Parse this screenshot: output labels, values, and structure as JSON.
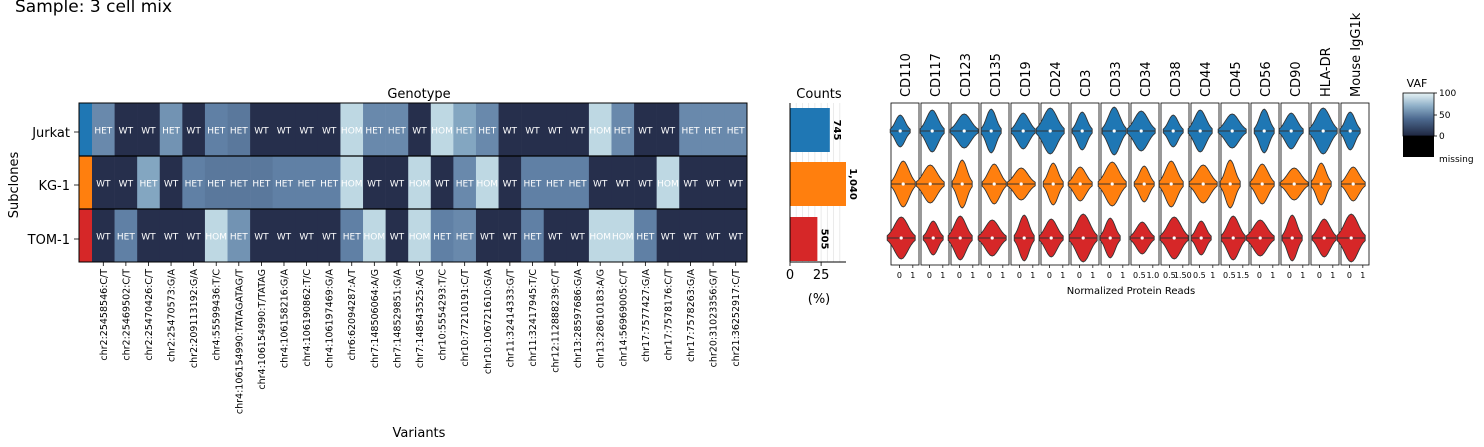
{
  "page_title": "Sample: 3 cell mix",
  "colors": {
    "WT": "#262f4c",
    "HET": "#6a8aab",
    "HOM": "#cde7ea",
    "subclones": [
      "#1f77b4",
      "#ff7f0e",
      "#d62728"
    ],
    "vaf_missing": "#000000"
  },
  "chart_data": [
    {
      "type": "heatmap",
      "title": "Genotype",
      "xlabel": "Variants",
      "ylabel": "Subclones",
      "rows": [
        "Jurkat",
        "KG-1",
        "TOM-1"
      ],
      "columns": [
        "chr2:25458546:C/T",
        "chr2:25469502:C/T",
        "chr2:25470426:C/T",
        "chr2:25470573:G/A",
        "chr2:209113192:G/A",
        "chr4:55599436:T/C",
        "chr4:106154990:TATAGATAG/T",
        "chr4:106154990:T/TATAG",
        "chr4:106158216:G/A",
        "chr4:106190862:T/C",
        "chr4:106197469:G/A",
        "chr6:62094287:A/T",
        "chr7:148506064:A/G",
        "chr7:148529851:G/A",
        "chr7:148543525:A/G",
        "chr10:5554293:T/C",
        "chr10:77210191:C/T",
        "chr10:106721610:G/A",
        "chr11:32414333:G/T",
        "chr11:32417945:T/C",
        "chr12:112888239:C/T",
        "chr13:28597686:G/A",
        "chr13:28610183:A/G",
        "chr14:56969005:C/T",
        "chr17:7577427:G/A",
        "chr17:7578176:C/T",
        "chr17:7578263:G/A",
        "chr20:31023356:G/T",
        "chr21:36252917:C/T"
      ],
      "values": [
        [
          "HET",
          "WT",
          "WT",
          "HET",
          "WT",
          "HET",
          "HET",
          "WT",
          "WT",
          "WT",
          "WT",
          "HOM",
          "HET",
          "HET",
          "WT",
          "HOM",
          "HET",
          "HET",
          "WT",
          "WT",
          "WT",
          "WT",
          "HOM",
          "HET",
          "WT",
          "WT",
          "HET",
          "HET",
          "HET"
        ],
        [
          "WT",
          "WT",
          "HET",
          "WT",
          "HET",
          "HET",
          "HET",
          "HET",
          "HET",
          "HET",
          "HET",
          "HOM",
          "WT",
          "WT",
          "HOM",
          "WT",
          "HET",
          "HOM",
          "WT",
          "HET",
          "HET",
          "HET",
          "WT",
          "WT",
          "WT",
          "HOM",
          "WT",
          "WT",
          "WT"
        ],
        [
          "WT",
          "HET",
          "WT",
          "WT",
          "WT",
          "HOM",
          "HET",
          "WT",
          "WT",
          "WT",
          "WT",
          "HET",
          "HOM",
          "WT",
          "HOM",
          "HET",
          "HET",
          "WT",
          "WT",
          "HET",
          "WT",
          "WT",
          "HOM",
          "HOM",
          "HET",
          "WT",
          "WT",
          "WT",
          "WT"
        ]
      ],
      "cell_shades": [
        [
          0.55,
          0.0,
          0.0,
          0.6,
          0.0,
          0.5,
          0.45,
          0.0,
          0.0,
          0.0,
          0.0,
          0.92,
          0.55,
          0.55,
          0.0,
          0.92,
          0.7,
          0.55,
          0.0,
          0.0,
          0.0,
          0.0,
          0.92,
          0.55,
          0.0,
          0.0,
          0.55,
          0.55,
          0.55
        ],
        [
          0.0,
          0.0,
          0.7,
          0.0,
          0.5,
          0.45,
          0.45,
          0.45,
          0.5,
          0.5,
          0.5,
          0.92,
          0.0,
          0.0,
          0.92,
          0.0,
          0.55,
          0.92,
          0.0,
          0.5,
          0.5,
          0.5,
          0.0,
          0.0,
          0.0,
          0.92,
          0.0,
          0.0,
          0.0
        ],
        [
          0.0,
          0.5,
          0.0,
          0.0,
          0.0,
          0.92,
          0.6,
          0.0,
          0.0,
          0.0,
          0.0,
          0.5,
          0.92,
          0.0,
          0.92,
          0.5,
          0.55,
          0.0,
          0.0,
          0.5,
          0.0,
          0.0,
          0.92,
          0.92,
          0.5,
          0.0,
          0.0,
          0.0,
          0.0
        ]
      ]
    },
    {
      "type": "bar",
      "title": "Counts",
      "xlabel": "(%)",
      "categories": [
        "Jurkat",
        "KG-1",
        "TOM-1"
      ],
      "values": [
        32,
        45,
        22
      ],
      "data_labels": [
        "745",
        "1,040",
        "505"
      ],
      "xticks": [
        "0",
        "25"
      ],
      "xlim": [
        0,
        45
      ]
    },
    {
      "type": "violin",
      "xlabel": "Normalized Protein Reads",
      "panels": [
        {
          "name": "CD110",
          "ticks": [
            "0",
            "1"
          ]
        },
        {
          "name": "CD117",
          "ticks": [
            "0",
            "1"
          ]
        },
        {
          "name": "CD123",
          "ticks": [
            "0",
            "1"
          ]
        },
        {
          "name": "CD135",
          "ticks": [
            "0",
            "1"
          ]
        },
        {
          "name": "CD19",
          "ticks": [
            "0",
            "1"
          ]
        },
        {
          "name": "CD24",
          "ticks": [
            "0",
            "1"
          ]
        },
        {
          "name": "CD3",
          "ticks": [
            "0",
            "1"
          ]
        },
        {
          "name": "CD33",
          "ticks": [
            "0",
            "1"
          ]
        },
        {
          "name": "CD34",
          "ticks": [
            "0.5",
            "1.0"
          ]
        },
        {
          "name": "CD38",
          "ticks": [
            "0.5",
            "1.50"
          ]
        },
        {
          "name": "CD44",
          "ticks": [
            "0.5",
            "1"
          ]
        },
        {
          "name": "CD45",
          "ticks": [
            "0.5",
            "1.5"
          ]
        },
        {
          "name": "CD56",
          "ticks": [
            "0",
            "1"
          ]
        },
        {
          "name": "CD90",
          "ticks": [
            "0",
            "1"
          ]
        },
        {
          "name": "HLA-DR",
          "ticks": [
            "0",
            "1"
          ]
        },
        {
          "name": "Mouse IgG1k",
          "ticks": [
            "0",
            "1"
          ]
        }
      ],
      "rows": [
        "Jurkat",
        "KG-1",
        "TOM-1"
      ]
    },
    {
      "type": "colorbar",
      "title": "VAF",
      "ticks": [
        "100",
        "50",
        "0"
      ],
      "missing_label": "missing"
    }
  ]
}
